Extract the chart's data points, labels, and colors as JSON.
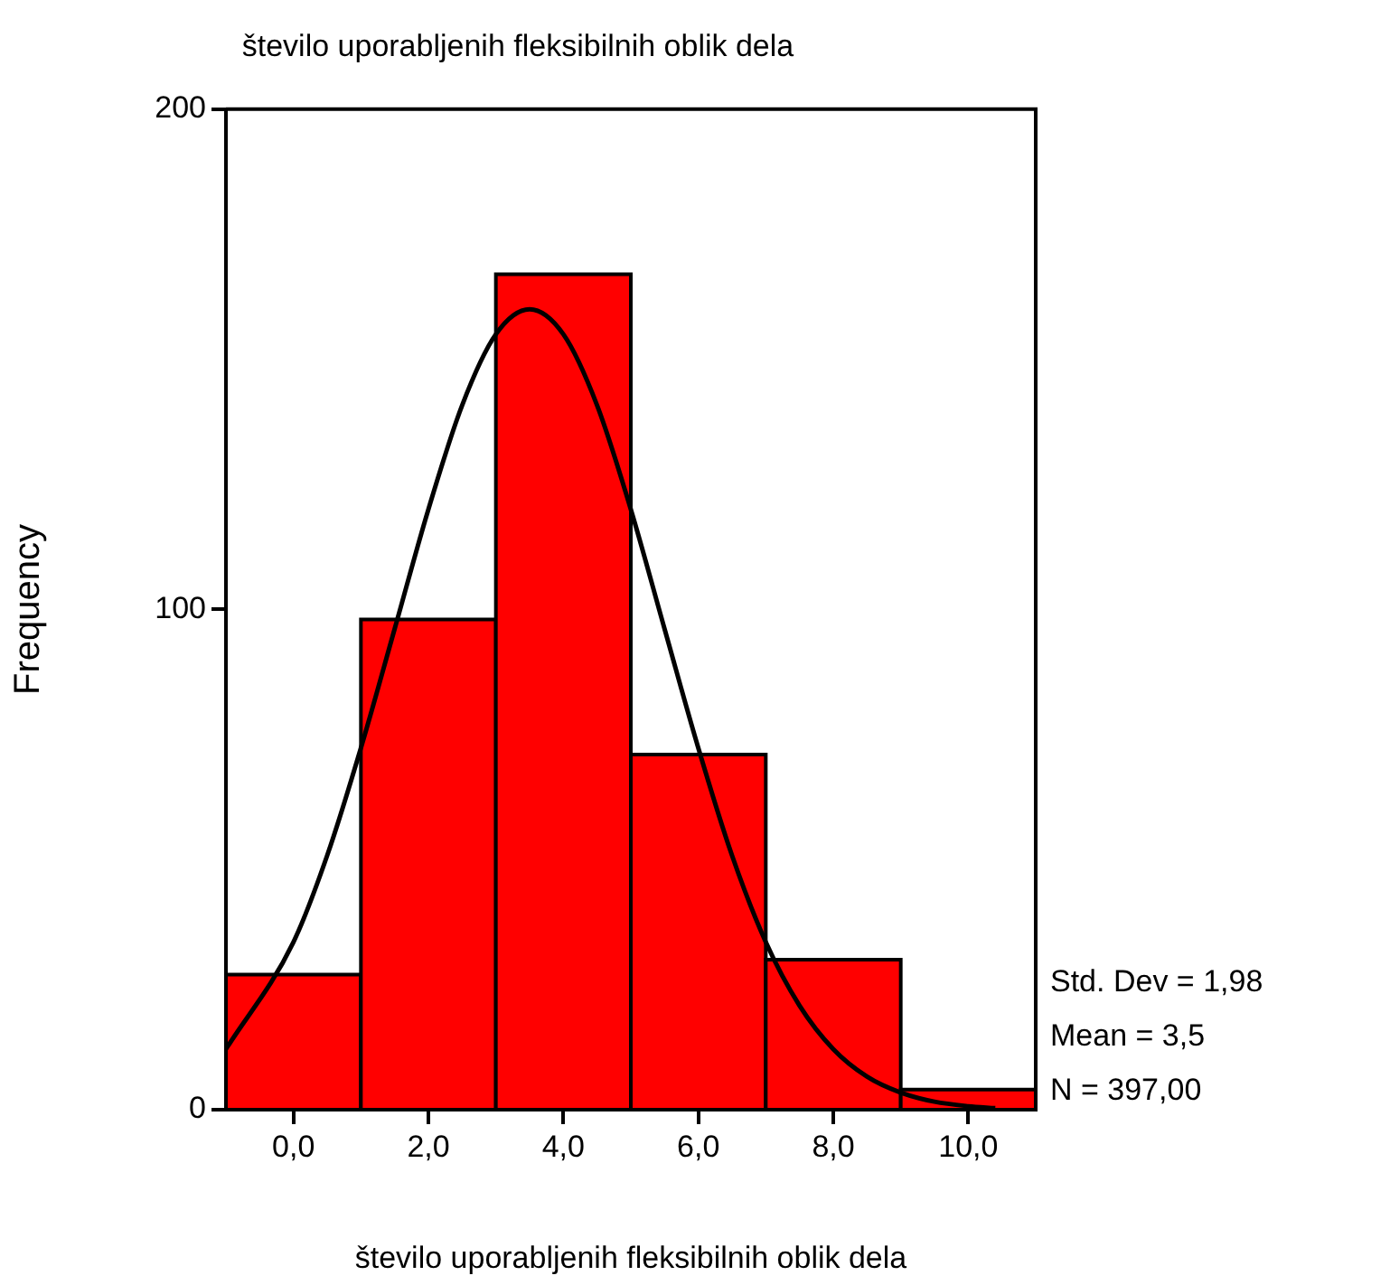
{
  "chart_data": {
    "type": "histogram",
    "title": "število uporabljenih fleksibilnih oblik dela",
    "xlabel": "število uporabljenih fleksibilnih oblik dela",
    "ylabel": "Frequency",
    "bins": [
      -1,
      1,
      3,
      5,
      7,
      9,
      11
    ],
    "values": [
      27,
      98,
      167,
      71,
      30,
      4
    ],
    "color": "#ff0000",
    "series": [
      {
        "type": "line",
        "x": [
          -1,
          0,
          0.5,
          1,
          1.5,
          2,
          2.5,
          3,
          3.5,
          4,
          4.5,
          5,
          5.5,
          6,
          6.5,
          7,
          7.5,
          8,
          8.5,
          9,
          9.5,
          10,
          10.4
        ],
        "values": [
          12.1,
          33.5,
          50.8,
          72.3,
          96.1,
          120,
          140.8,
          155,
          160,
          155,
          140.8,
          120,
          96.1,
          72.3,
          50.8,
          33.5,
          20.8,
          12.1,
          6.6,
          3.4,
          1.6,
          0.7,
          0.3
        ],
        "color": "#000000"
      }
    ],
    "xlim": [
      -1,
      11
    ],
    "xticks": [
      {
        "value": 0,
        "label": "0,0"
      },
      {
        "value": 2,
        "label": "2,0"
      },
      {
        "value": 4,
        "label": "4,0"
      },
      {
        "value": 6,
        "label": "6,0"
      },
      {
        "value": 8,
        "label": "8,0"
      },
      {
        "value": 10,
        "label": "10,0"
      }
    ],
    "ylim": [
      0,
      200
    ],
    "yticks": [
      0,
      100,
      200
    ],
    "annotations": [
      "Std. Dev = 1,98",
      "Mean = 3,5",
      "N = 397,00"
    ]
  }
}
